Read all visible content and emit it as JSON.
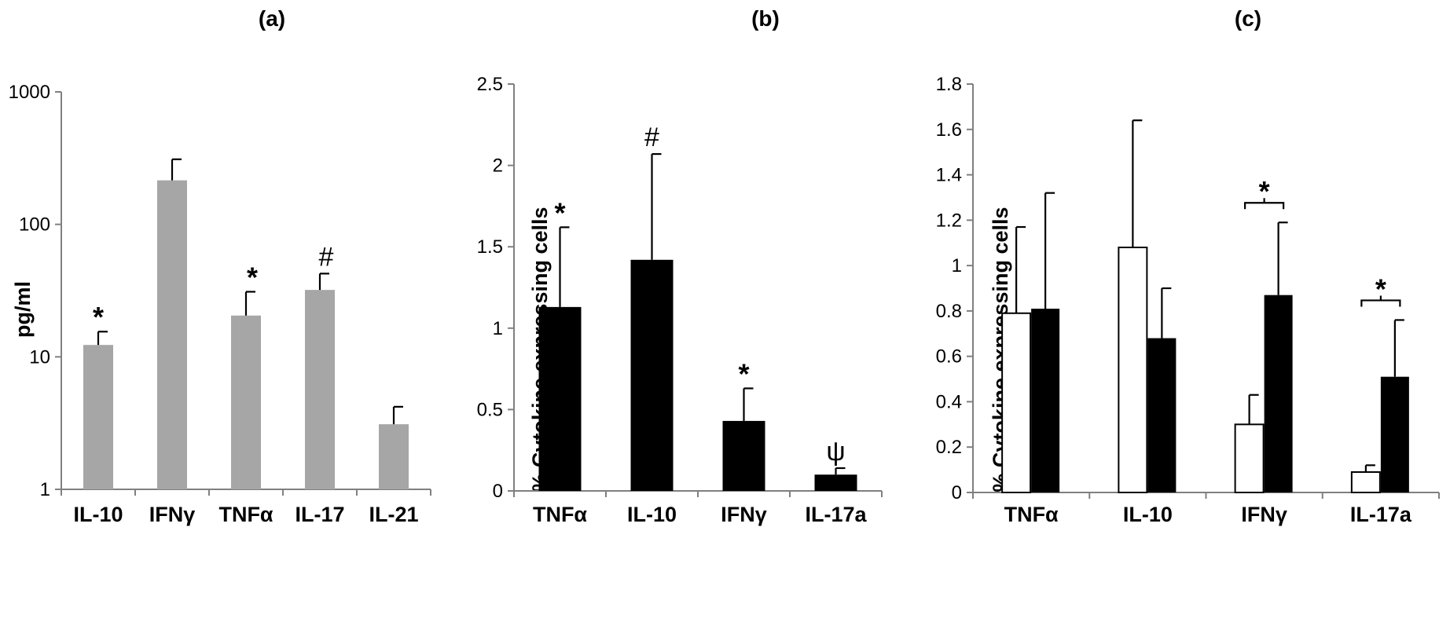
{
  "chart_data": [
    {
      "panel": "(a)",
      "type": "bar",
      "ylabel": "pg/ml",
      "yscale": "log",
      "ylim": [
        1,
        1000
      ],
      "yticks": [
        "1",
        "10",
        "100",
        "1000"
      ],
      "categories": [
        "IL-10",
        "IFNγ",
        "TNFα",
        "IL-17",
        "IL-21"
      ],
      "series": [
        {
          "values": [
            12.3,
            215,
            20.5,
            32,
            3.1
          ],
          "errors": [
            3.2,
            95,
            10.5,
            10.5,
            1.1
          ],
          "color": "#a6a6a6"
        }
      ],
      "annotations": [
        {
          "category": "IL-10",
          "text": "*"
        },
        {
          "category": "TNFα",
          "text": "*"
        },
        {
          "category": "IL-17",
          "text": "#"
        }
      ]
    },
    {
      "panel": "(b)",
      "type": "bar",
      "ylabel": "% Cytokine expressing cells",
      "yscale": "linear",
      "ylim": [
        0,
        2.5
      ],
      "yticks": [
        "0",
        "0.5",
        "1",
        "1.5",
        "2",
        "2.5"
      ],
      "categories": [
        "TNFα",
        "IL-10",
        "IFNγ",
        "IL-17a"
      ],
      "series": [
        {
          "values": [
            1.13,
            1.42,
            0.43,
            0.1
          ],
          "errors": [
            0.49,
            0.65,
            0.2,
            0.04
          ],
          "color": "#000000"
        }
      ],
      "annotations": [
        {
          "category": "TNFα",
          "text": "*"
        },
        {
          "category": "IL-10",
          "text": "#"
        },
        {
          "category": "IFNγ",
          "text": "*"
        },
        {
          "category": "IL-17a",
          "text": "ψ"
        }
      ]
    },
    {
      "panel": "(c)",
      "type": "bar",
      "ylabel": "% Cytokine expressing cells",
      "yscale": "linear",
      "ylim": [
        0,
        1.8
      ],
      "yticks": [
        "0",
        "0.2",
        "0.4",
        "0.6",
        "0.8",
        "1",
        "1.2",
        "1.4",
        "1.6",
        "1.8"
      ],
      "categories": [
        "TNFα",
        "IL-10",
        "IFNγ",
        "IL-17a"
      ],
      "series": [
        {
          "values": [
            0.79,
            1.08,
            0.3,
            0.09
          ],
          "errors": [
            0.38,
            0.56,
            0.13,
            0.03
          ],
          "color": "#ffffff"
        },
        {
          "values": [
            0.81,
            0.68,
            0.87,
            0.51
          ],
          "errors": [
            0.51,
            0.22,
            0.32,
            0.25
          ],
          "color": "#000000"
        }
      ],
      "annotations": [
        {
          "category": "IFNγ",
          "text": "*",
          "bracket": true
        },
        {
          "category": "IL-17a",
          "text": "*",
          "bracket": true
        }
      ]
    }
  ]
}
